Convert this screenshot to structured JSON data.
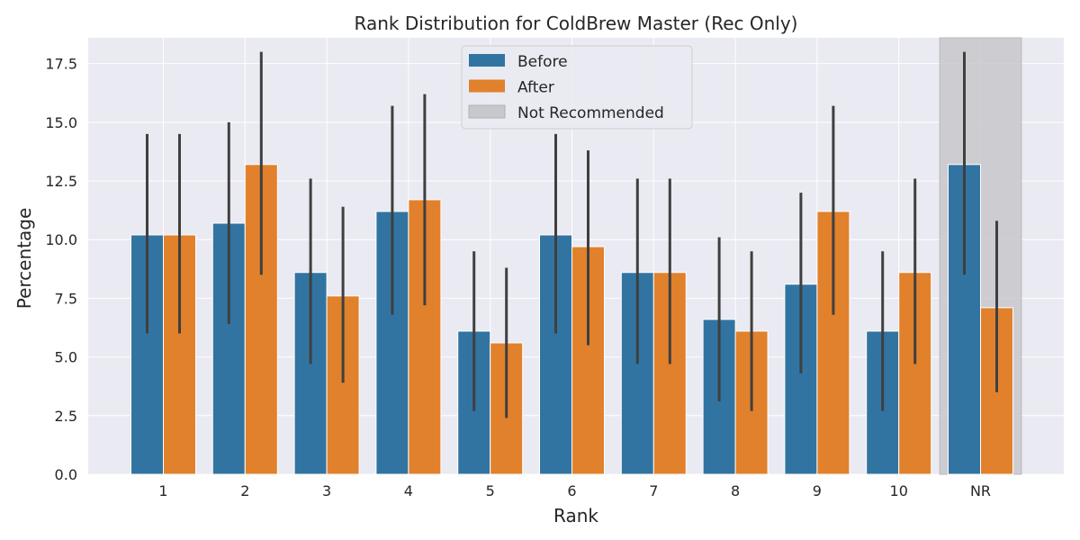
{
  "chart_data": {
    "type": "bar",
    "title": "Rank Distribution for ColdBrew Master (Rec Only)",
    "xlabel": "Rank",
    "ylabel": "Percentage",
    "categories": [
      "1",
      "2",
      "3",
      "4",
      "5",
      "6",
      "7",
      "8",
      "9",
      "10",
      "NR"
    ],
    "series": [
      {
        "name": "Before",
        "color": "#3274a1",
        "values": [
          10.2,
          10.7,
          8.6,
          11.2,
          6.1,
          10.2,
          8.6,
          6.6,
          8.1,
          6.1,
          13.2
        ],
        "ci_low": [
          6.0,
          6.4,
          4.7,
          6.8,
          2.7,
          6.0,
          4.7,
          3.1,
          4.3,
          2.7,
          8.5
        ],
        "ci_high": [
          14.5,
          15.0,
          12.6,
          15.7,
          9.5,
          14.5,
          12.6,
          10.1,
          12.0,
          9.5,
          18.0
        ]
      },
      {
        "name": "After",
        "color": "#e1812c",
        "values": [
          10.2,
          13.2,
          7.6,
          11.7,
          5.6,
          9.7,
          8.6,
          6.1,
          11.2,
          8.6,
          7.1
        ],
        "ci_low": [
          6.0,
          8.5,
          3.9,
          7.2,
          2.4,
          5.5,
          4.7,
          2.7,
          6.8,
          4.7,
          3.5
        ],
        "ci_high": [
          14.5,
          18.0,
          11.4,
          16.2,
          8.8,
          13.8,
          12.6,
          9.5,
          15.7,
          12.6,
          10.8
        ]
      }
    ],
    "highlight": {
      "category": "NR",
      "label": "Not Recommended",
      "color": "#c8c8cc"
    },
    "yticks": [
      "0.0",
      "2.5",
      "5.0",
      "7.5",
      "10.0",
      "12.5",
      "15.0",
      "17.5"
    ],
    "ylim": [
      0,
      18.6
    ],
    "grid": true,
    "legend_position": "top-center",
    "colors": {
      "background": "#eaeaf2",
      "grid": "#ffffff",
      "errorbar": "#3f3f3f"
    }
  }
}
